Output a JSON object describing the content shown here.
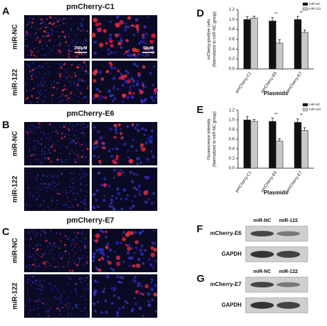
{
  "panel_labels": [
    "A",
    "B",
    "C",
    "D",
    "E",
    "F",
    "G"
  ],
  "microscopy": {
    "groups": [
      {
        "title": "pmCherry-C1",
        "rows": [
          "miR-NC",
          "miR-122"
        ]
      },
      {
        "title": "pmCherry-E6",
        "rows": [
          "miR-NC",
          "miR-122"
        ]
      },
      {
        "title": "pmCherry-E7",
        "rows": [
          "miR-NC",
          "miR-122"
        ]
      }
    ],
    "scale_bars": [
      "250μM",
      "50μM"
    ]
  },
  "chart_data": [
    {
      "type": "bar",
      "ylabel": [
        "mCherry-positive cells",
        "(Normalized to miR-NC group)"
      ],
      "xlabel": "Plasmids",
      "categories": [
        "pmCherry-C1",
        "pmCherry-E6",
        "pmCherry-E7"
      ],
      "series": [
        {
          "name": "miR-NC",
          "color": "#111111",
          "values": [
            1.0,
            0.97,
            1.0
          ],
          "errors": [
            0.06,
            0.07,
            0.06
          ]
        },
        {
          "name": "miR-122",
          "color": "#c8c8c8",
          "values": [
            1.03,
            0.52,
            0.74
          ],
          "errors": [
            0.04,
            0.07,
            0.05
          ]
        }
      ],
      "annotations": [
        null,
        "**",
        "**"
      ],
      "ylim": [
        0,
        1.2
      ],
      "yticks": [
        {
          "value": 0,
          "label": "0.0"
        },
        0.2,
        0.4,
        0.6,
        0.8,
        {
          "value": 1,
          "label": "1.0"
        },
        1.2
      ],
      "legend": "upper right"
    },
    {
      "type": "bar",
      "ylabel": [
        "Fluorescence intensity",
        "(Normalized to miR-NC group)"
      ],
      "xlabel": "Plasmids",
      "categories": [
        "pmCherry-C1",
        "pmCherry-E6",
        "pmCherry-E7"
      ],
      "series": [
        {
          "name": "miR-NC",
          "color": "#111111",
          "values": [
            1.0,
            0.97,
            0.95
          ],
          "errors": [
            0.07,
            0.07,
            0.07
          ]
        },
        {
          "name": "miR-122",
          "color": "#c8c8c8",
          "values": [
            0.97,
            0.56,
            0.78
          ],
          "errors": [
            0.04,
            0.05,
            0.06
          ]
        }
      ],
      "annotations": [
        null,
        "**",
        "**"
      ],
      "ylim": [
        0,
        1.2
      ],
      "yticks": [
        {
          "value": 0,
          "label": "0.0"
        },
        0.2,
        0.4,
        0.6,
        0.8,
        {
          "value": 1,
          "label": "1.0"
        },
        1.2
      ],
      "legend": "upper right"
    }
  ],
  "blots": [
    {
      "columns": [
        "miR-NC",
        "miR-122"
      ],
      "rows": [
        "mCherry-E6",
        "GAPDH"
      ]
    },
    {
      "columns": [
        "miR-NC",
        "miR-122"
      ],
      "rows": [
        "mCherry-E7",
        "GAPDH"
      ]
    }
  ]
}
